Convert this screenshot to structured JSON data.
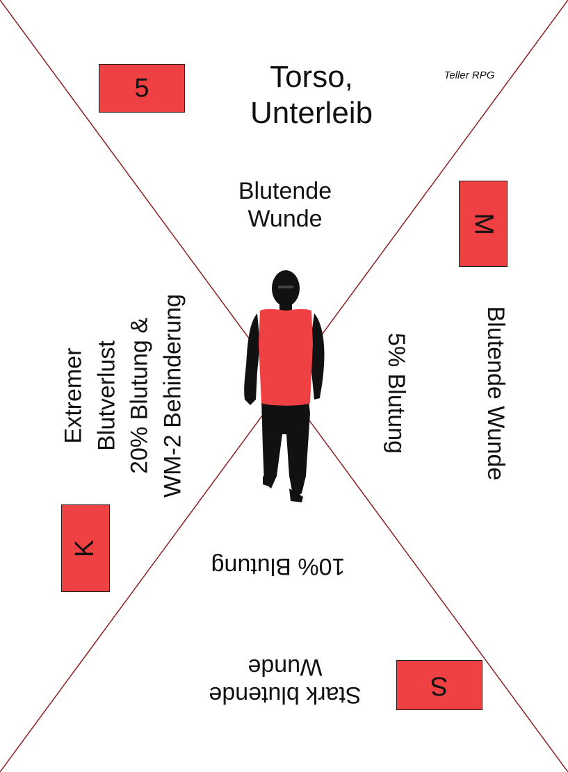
{
  "card": {
    "title_line1": "Torso,",
    "title_line2": "Unterleib",
    "brand": "Teller RPG",
    "number": "5"
  },
  "sections": {
    "top": {
      "line1": "Blutende",
      "line2": "Wunde"
    },
    "right_outer": "Blutende Wunde",
    "right_inner": "5% Blutung",
    "bottom_inner": "10% Blutung",
    "bottom_outer": {
      "line1": "Stark blutende",
      "line2": "Wunde"
    },
    "left": {
      "line1": "Extremer",
      "line2": "Blutverlust",
      "line3": "20% Blutung &",
      "line4": "WM-2 Behinderung"
    }
  },
  "markers": {
    "M": "M",
    "K": "K",
    "S": "S"
  },
  "colors": {
    "accent_red": "#ef4044",
    "diagonal": "#8a1f22",
    "figure": "#111111"
  },
  "icons": {
    "figure": "walking-person-silhouette"
  }
}
